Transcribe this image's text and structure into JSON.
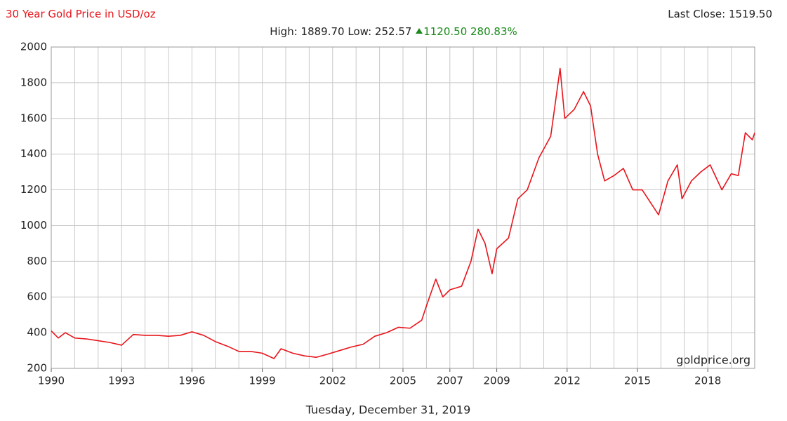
{
  "chart_data": {
    "type": "line",
    "title": "30 Year Gold Price in USD/oz",
    "last_close_label": "Last Close:",
    "last_close": "1519.50",
    "stats": {
      "high_label": "High:",
      "high": "1889.70",
      "low_label": "Low:",
      "low": "252.57",
      "change": "1120.50",
      "change_pct": "280.83%"
    },
    "date": "Tuesday, December 31, 2019",
    "source": "goldprice.org",
    "color": "#e8141a",
    "grid": true,
    "x": [
      1990.0,
      1990.3,
      1990.6,
      1991.0,
      1991.5,
      1992.0,
      1992.5,
      1993.0,
      1993.5,
      1994.0,
      1994.5,
      1995.0,
      1995.5,
      1996.0,
      1996.5,
      1997.0,
      1997.5,
      1998.0,
      1998.5,
      1999.0,
      1999.5,
      1999.8,
      2000.3,
      2000.8,
      2001.3,
      2001.8,
      2002.3,
      2002.8,
      2003.3,
      2003.8,
      2004.3,
      2004.8,
      2005.3,
      2005.8,
      2006.0,
      2006.4,
      2006.7,
      2007.0,
      2007.5,
      2007.9,
      2008.2,
      2008.5,
      2008.8,
      2009.0,
      2009.5,
      2009.9,
      2010.3,
      2010.8,
      2011.3,
      2011.7,
      2011.9,
      2012.3,
      2012.7,
      2013.0,
      2013.3,
      2013.6,
      2014.0,
      2014.4,
      2014.8,
      2015.2,
      2015.9,
      2016.3,
      2016.7,
      2016.9,
      2017.3,
      2017.7,
      2018.1,
      2018.6,
      2019.0,
      2019.3,
      2019.6,
      2019.9,
      2020.0
    ],
    "values": [
      410,
      370,
      400,
      370,
      365,
      355,
      345,
      330,
      390,
      385,
      385,
      380,
      385,
      405,
      385,
      350,
      325,
      295,
      295,
      285,
      255,
      310,
      285,
      270,
      262,
      280,
      300,
      320,
      335,
      380,
      400,
      430,
      425,
      470,
      550,
      700,
      600,
      640,
      660,
      800,
      980,
      900,
      730,
      870,
      930,
      1150,
      1200,
      1380,
      1500,
      1880,
      1600,
      1650,
      1750,
      1670,
      1400,
      1250,
      1280,
      1320,
      1200,
      1200,
      1060,
      1250,
      1340,
      1150,
      1250,
      1300,
      1340,
      1200,
      1290,
      1280,
      1520,
      1480,
      1519.5
    ],
    "xlim": [
      1990,
      2020
    ],
    "xticks": [
      1990,
      1993,
      1996,
      1999,
      2002,
      2005,
      2007,
      2009,
      2012,
      2015,
      2018
    ],
    "minor_xticks": [
      1991,
      1992,
      1994,
      1995,
      1997,
      1998,
      2000,
      2001,
      2003,
      2004,
      2006,
      2008,
      2010,
      2011,
      2013,
      2014,
      2016,
      2017,
      2019
    ],
    "ylim": [
      200,
      2000
    ],
    "yticks": [
      200,
      400,
      600,
      800,
      1000,
      1200,
      1400,
      1600,
      1800,
      2000
    ]
  }
}
